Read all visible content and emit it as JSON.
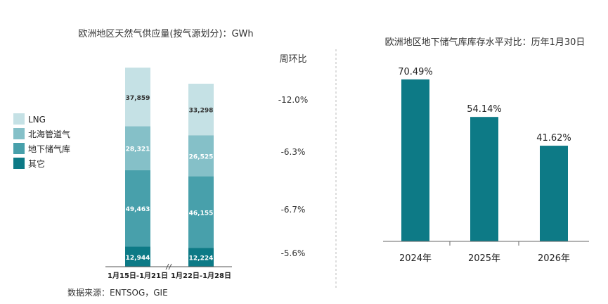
{
  "chart_data": [
    {
      "type": "bar",
      "stacked": true,
      "title": "欧洲地区天然气供应量(按气源划分)：GWh",
      "categories": [
        "1月15日-1月21日",
        "1月22日-1月28日"
      ],
      "series": [
        {
          "name": "其它",
          "values": [
            12944,
            12224
          ],
          "labels": [
            "12,944",
            "12,224"
          ],
          "color": "#0d7a86",
          "wow": "-5.6%"
        },
        {
          "name": "地下储气库",
          "values": [
            49463,
            46155
          ],
          "labels": [
            "49,463",
            "46,155"
          ],
          "color": "#48a0ab",
          "wow": "-6.7%"
        },
        {
          "name": "北海管道气",
          "values": [
            28321,
            26525
          ],
          "labels": [
            "28,321",
            "26,525"
          ],
          "color": "#85c0c8",
          "wow": "-6.3%"
        },
        {
          "name": "LNG",
          "values": [
            37859,
            33298
          ],
          "labels": [
            "37,859",
            "33,298"
          ],
          "color": "#c5e1e5",
          "wow": "-12.0%"
        }
      ],
      "legend_position": "left",
      "wow_header": "周环比",
      "source_note": "数据来源：ENTSOG，GIE",
      "grid": false
    },
    {
      "type": "bar",
      "title": "欧洲地区地下储气库库存水平对比：历年1月30日",
      "categories": [
        "2024年",
        "2025年",
        "2026年"
      ],
      "values": [
        70.49,
        54.14,
        41.62
      ],
      "value_labels": [
        "70.49%",
        "54.14%",
        "41.62%"
      ],
      "color": "#0d7a86",
      "unit": "%",
      "grid": false
    }
  ]
}
